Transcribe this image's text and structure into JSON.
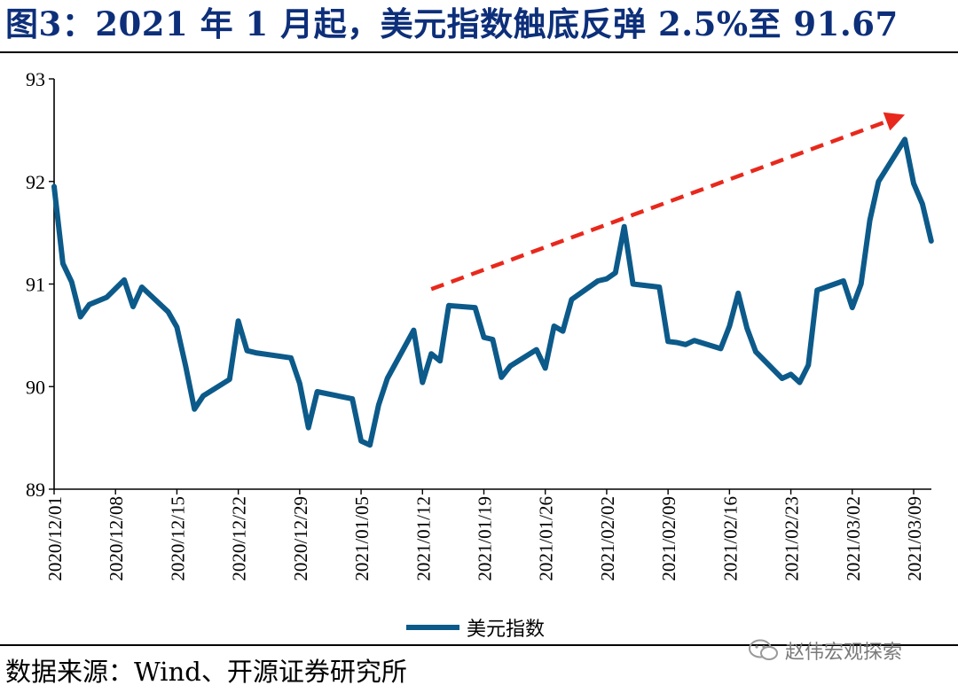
{
  "title": "图3：2021 年 1 月起，美元指数触底反弹 2.5%至 91.67",
  "source": "数据来源：Wind、开源证券研究所",
  "watermark": "赵伟宏观探索",
  "colors": {
    "title": "#0d2f7a",
    "series": "#0c5a8a",
    "arrow": "#e8281c"
  },
  "chart_data": {
    "type": "line",
    "title": "",
    "xlabel": "",
    "ylabel": "",
    "ylim": [
      89,
      93
    ],
    "yticks": [
      89,
      90,
      91,
      92,
      93
    ],
    "xticks": [
      "2020/12/01",
      "2020/12/08",
      "2020/12/15",
      "2020/12/22",
      "2020/12/29",
      "2021/01/05",
      "2021/01/12",
      "2021/01/19",
      "2021/01/26",
      "2021/02/02",
      "2021/02/09",
      "2021/02/16",
      "2021/02/23",
      "2021/03/02",
      "2021/03/09"
    ],
    "legend": "bottom-center",
    "grid": false,
    "series": [
      {
        "name": "美元指数",
        "x": [
          "2020/12/01",
          "2020/12/02",
          "2020/12/03",
          "2020/12/04",
          "2020/12/05",
          "2020/12/07",
          "2020/12/09",
          "2020/12/10",
          "2020/12/11",
          "2020/12/14",
          "2020/12/15",
          "2020/12/16",
          "2020/12/17",
          "2020/12/18",
          "2020/12/21",
          "2020/12/22",
          "2020/12/23",
          "2020/12/24",
          "2020/12/28",
          "2020/12/29",
          "2020/12/30",
          "2020/12/31",
          "2021/01/04",
          "2021/01/05",
          "2021/01/06",
          "2021/01/07",
          "2021/01/08",
          "2021/01/11",
          "2021/01/12",
          "2021/01/13",
          "2021/01/14",
          "2021/01/15",
          "2021/01/18",
          "2021/01/19",
          "2021/01/20",
          "2021/01/21",
          "2021/01/22",
          "2021/01/25",
          "2021/01/26",
          "2021/01/27",
          "2021/01/28",
          "2021/01/29",
          "2021/02/01",
          "2021/02/02",
          "2021/02/03",
          "2021/02/04",
          "2021/02/05",
          "2021/02/08",
          "2021/02/09",
          "2021/02/10",
          "2021/02/11",
          "2021/02/12",
          "2021/02/15",
          "2021/02/16",
          "2021/02/17",
          "2021/02/18",
          "2021/02/19",
          "2021/02/22",
          "2021/02/23",
          "2021/02/24",
          "2021/02/25",
          "2021/02/26",
          "2021/03/01",
          "2021/03/02",
          "2021/03/03",
          "2021/03/04",
          "2021/03/05",
          "2021/03/08",
          "2021/03/09",
          "2021/03/10",
          "2021/03/11"
        ],
        "values": [
          91.95,
          91.2,
          91.02,
          90.68,
          90.8,
          90.87,
          91.04,
          90.78,
          90.97,
          90.73,
          90.58,
          90.2,
          89.78,
          89.91,
          90.07,
          90.64,
          90.35,
          90.33,
          90.28,
          90.03,
          89.6,
          89.95,
          89.88,
          89.47,
          89.43,
          89.82,
          90.08,
          90.55,
          90.04,
          90.32,
          90.25,
          90.79,
          90.77,
          90.48,
          90.46,
          90.09,
          90.2,
          90.36,
          90.18,
          90.59,
          90.54,
          90.85,
          91.03,
          91.05,
          91.11,
          91.56,
          91.0,
          90.97,
          90.44,
          90.43,
          90.41,
          90.45,
          90.37,
          90.59,
          90.91,
          90.57,
          90.34,
          90.08,
          90.12,
          90.04,
          90.21,
          90.94,
          91.03,
          90.77,
          91.0,
          91.62,
          92.0,
          92.41,
          91.98,
          91.78,
          91.42
        ]
      }
    ],
    "annotations": [
      {
        "type": "dashed-arrow",
        "from": {
          "x": "2021/01/13",
          "y": 90.95
        },
        "to": {
          "x": "2021/03/08",
          "y": 92.65
        }
      }
    ]
  }
}
